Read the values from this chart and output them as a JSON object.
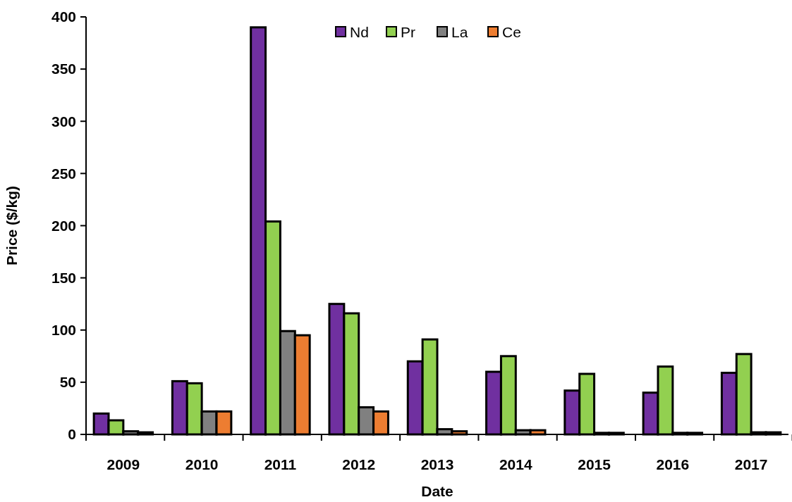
{
  "chart_data": {
    "type": "bar",
    "xlabel": "Date",
    "ylabel": "Price ($/kg)",
    "categories": [
      "2009",
      "2010",
      "2011",
      "2012",
      "2013",
      "2014",
      "2015",
      "2016",
      "2017"
    ],
    "series": [
      {
        "name": "Nd",
        "color": "#7030a0",
        "values": [
          20,
          51,
          390,
          125,
          70,
          60,
          42,
          40,
          59
        ]
      },
      {
        "name": "Pr",
        "color": "#92d050",
        "values": [
          13.5,
          49,
          204,
          116,
          91,
          75,
          58,
          65,
          77
        ]
      },
      {
        "name": "La",
        "color": "#808080",
        "values": [
          3,
          22,
          99,
          26,
          5,
          4,
          1.5,
          1.5,
          2
        ]
      },
      {
        "name": "Ce",
        "color": "#ed7d31",
        "values": [
          2,
          22,
          95,
          22,
          3,
          4,
          1.5,
          1.5,
          2
        ]
      }
    ],
    "ylim": [
      0,
      400
    ],
    "yticks": [
      0,
      50,
      100,
      150,
      200,
      250,
      300,
      350,
      400
    ],
    "grid": false,
    "legend": "top"
  }
}
